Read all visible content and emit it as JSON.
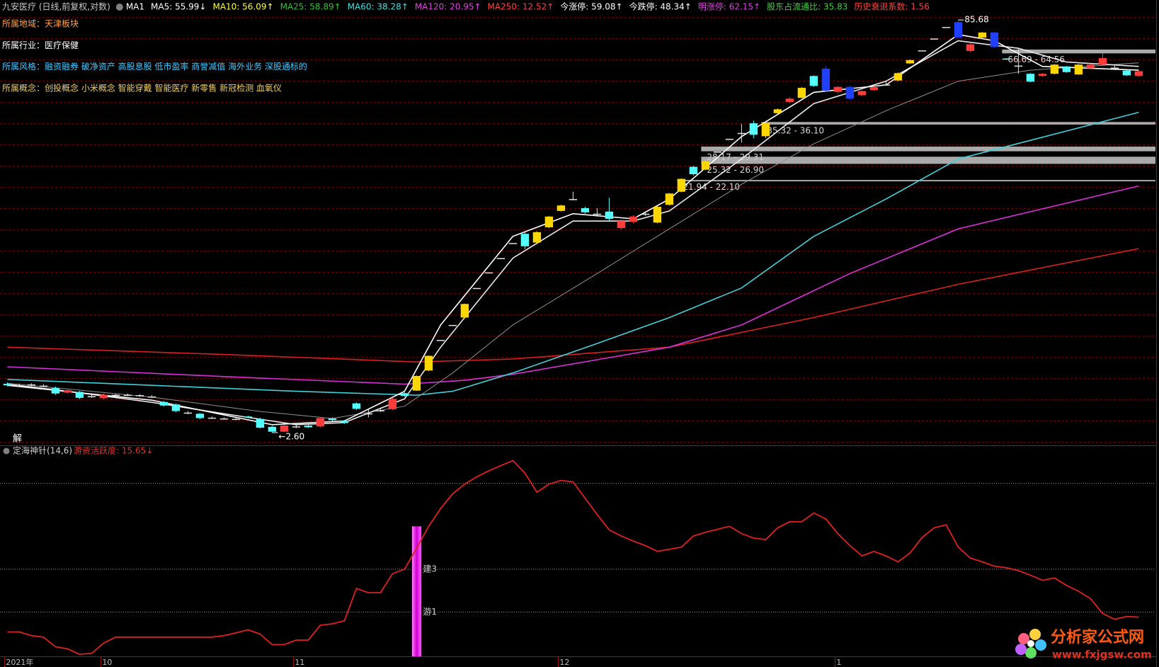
{
  "header": {
    "title": "九安医疗 (日线,前复权,对数)",
    "items": [
      {
        "text": "MA1",
        "color": "#ffffff"
      },
      {
        "text": "MA5: 55.99↓",
        "color": "#ffffff"
      },
      {
        "text": "MA10: 56.09↑",
        "color": "#ffff40"
      },
      {
        "text": "MA25: 58.89↑",
        "color": "#30c030"
      },
      {
        "text": "MA60: 38.28↑",
        "color": "#40e0e0"
      },
      {
        "text": "MA120: 20.95↑",
        "color": "#e040e0"
      },
      {
        "text": "MA250: 12.52↑",
        "color": "#ff4040"
      },
      {
        "text": "今涨停: 59.08↑",
        "color": "#ffffff"
      },
      {
        "text": "今跌停: 48.34↑",
        "color": "#ffffff"
      },
      {
        "text": "明涨停: 62.15↑",
        "color": "#e040e0"
      },
      {
        "text": "股东占流通比: 35.83",
        "color": "#40d040"
      },
      {
        "text": "历史衰退系数: 1.56",
        "color": "#ff4040"
      }
    ]
  },
  "info": [
    {
      "label": "所属地域：",
      "value": "天津板块",
      "color": "#ffa040"
    },
    {
      "label": "所属行业：",
      "value": "医疗保健",
      "color": "#ffffff"
    },
    {
      "label": "所属风格：",
      "value": "融资融券 破净资产 高股息股 低市盈率 商誉减值 海外业务 深股通标的",
      "color": "#40c8ff"
    },
    {
      "label": "所属概念：",
      "value": "创投概念 小米概念 智能穿戴 智能医疗 新零售 新冠检测 血氧仪",
      "color": "#f0d060"
    }
  ],
  "chart_data": [
    {
      "type": "candlestick",
      "log": true,
      "ylim": [
        2.37,
        89.5
      ],
      "palette": {
        "r": "#ff3c3c",
        "c": "#54ffff",
        "y": "#ffd700",
        "b": "#2040ff",
        "w": "#e0e0e0"
      },
      "open": [
        3.93,
        3.88,
        3.9,
        3.87,
        3.79,
        3.65,
        3.67,
        3.54,
        3.48,
        3.57,
        3.58,
        3.57,
        3.53,
        3.37,
        3.3,
        3.08,
        3.05,
        2.95,
        2.93,
        2.92,
        2.98,
        2.92,
        2.73,
        2.62,
        2.73,
        2.76,
        2.74,
        2.93,
        2.87,
        3.33,
        3.06,
        3.12,
        3.17,
        3.63,
        3.71,
        4.4,
        5.7,
        6.47,
        6.89,
        8.85,
        10.1,
        11.4,
        12.95,
        14.0,
        13.0,
        14.8,
        17.0,
        18.7,
        17.4,
        16.5,
        16.9,
        14.7,
        15.5,
        16.5,
        15.4,
        17.9,
        20.0,
        24.7,
        24.1,
        28.1,
        31.3,
        32.9,
        35.7,
        32.0,
        38.9,
        42.8,
        44.3,
        53.3,
        56.7,
        46.6,
        48.6,
        45.3,
        47.3,
        49.4,
        51.3,
        59.3,
        66.2,
        73.2,
        80.7,
        84.1,
        65.9,
        73.8,
        77.0,
        61.8,
        58.0,
        54.3,
        53.4,
        54.3,
        57.8,
        54.0,
        56.9,
        58.7,
        57.1,
        55.8,
        53.4
      ],
      "high": [
        3.98,
        3.93,
        3.95,
        3.92,
        3.84,
        3.76,
        3.7,
        3.58,
        3.62,
        3.61,
        3.62,
        3.6,
        3.57,
        3.4,
        3.33,
        3.12,
        3.07,
        2.98,
        2.96,
        2.95,
        3.0,
        2.95,
        2.75,
        2.78,
        2.78,
        2.79,
        2.96,
        2.96,
        2.89,
        3.36,
        3.16,
        3.18,
        3.5,
        3.66,
        4.22,
        5.0,
        5.7,
        6.47,
        7.75,
        8.85,
        10.1,
        11.4,
        12.95,
        14.2,
        14.3,
        16.3,
        17.9,
        20.0,
        17.6,
        17.4,
        19.0,
        15.8,
        16.4,
        16.8,
        17.7,
        19.8,
        22.4,
        24.9,
        26.0,
        28.1,
        31.3,
        35.5,
        36.5,
        36.5,
        40.5,
        44.5,
        48.5,
        53.6,
        58.0,
        49.0,
        49.0,
        47.2,
        49.0,
        51.0,
        55.0,
        61.3,
        66.2,
        73.2,
        80.7,
        85.68,
        70.2,
        77.5,
        77.5,
        62.0,
        67.0,
        54.6,
        54.6,
        59.0,
        58.0,
        59.0,
        59.2,
        64.5,
        58.5,
        56.0,
        56.0
      ],
      "low": [
        3.85,
        3.83,
        3.85,
        3.82,
        3.58,
        3.62,
        3.45,
        3.49,
        3.45,
        3.54,
        3.54,
        3.52,
        3.48,
        3.24,
        3.09,
        3.04,
        2.91,
        2.92,
        2.9,
        2.89,
        2.94,
        2.69,
        2.6,
        2.61,
        2.7,
        2.7,
        2.72,
        2.87,
        2.8,
        3.15,
        2.96,
        3.1,
        3.15,
        3.52,
        3.7,
        4.38,
        5.7,
        6.47,
        6.85,
        8.85,
        10.1,
        11.4,
        12.95,
        12.3,
        12.9,
        14.7,
        16.9,
        18.6,
        16.6,
        16.2,
        15.6,
        14.5,
        15.3,
        16.3,
        15.3,
        17.8,
        19.9,
        22.9,
        24.0,
        28.1,
        31.3,
        30.3,
        31.5,
        31.5,
        38.7,
        42.4,
        44.0,
        48.6,
        46.5,
        46.0,
        43.6,
        45.0,
        47.0,
        49.0,
        51.0,
        59.0,
        66.2,
        73.2,
        80.7,
        73.5,
        65.5,
        73.5,
        67.8,
        61.0,
        54.3,
        50.5,
        53.0,
        54.0,
        54.8,
        53.8,
        56.5,
        58.4,
        56.0,
        53.3,
        53.0
      ],
      "close": [
        3.88,
        3.87,
        3.91,
        3.86,
        3.62,
        3.72,
        3.49,
        3.52,
        3.58,
        3.58,
        3.57,
        3.55,
        3.5,
        3.27,
        3.12,
        3.07,
        2.94,
        2.94,
        2.92,
        2.91,
        2.96,
        2.71,
        2.62,
        2.76,
        2.74,
        2.72,
        2.94,
        2.89,
        2.82,
        3.18,
        3.06,
        3.14,
        3.46,
        3.55,
        4.2,
        4.98,
        5.7,
        6.47,
        7.73,
        8.85,
        10.1,
        11.4,
        12.95,
        12.6,
        14.2,
        16.2,
        17.8,
        18.8,
        16.8,
        16.6,
        15.9,
        15.6,
        16.2,
        16.6,
        17.6,
        19.7,
        22.3,
        23.2,
        25.9,
        28.1,
        31.3,
        32.9,
        32.4,
        35.7,
        40.2,
        44.0,
        48.2,
        49.0,
        47.0,
        48.6,
        44.0,
        46.9,
        48.5,
        49.6,
        54.6,
        61.0,
        66.2,
        73.2,
        80.7,
        73.8,
        69.7,
        77.0,
        68.1,
        61.3,
        58.2,
        50.8,
        54.3,
        58.7,
        55.1,
        58.7,
        58.7,
        62.0,
        57.2,
        53.6,
        55.5
      ],
      "colors": [
        "c",
        "w",
        "w",
        "w",
        "c",
        "r",
        "c",
        "w",
        "r",
        "w",
        "w",
        "w",
        "w",
        "c",
        "c",
        "w",
        "c",
        "w",
        "w",
        "w",
        "c",
        "c",
        "c",
        "r",
        "w",
        "c",
        "r",
        "c",
        "c",
        "c",
        "w",
        "w",
        "r",
        "c",
        "y",
        "y",
        "w",
        "w",
        "y",
        "w",
        "w",
        "w",
        "w",
        "c",
        "y",
        "y",
        "y",
        "w",
        "c",
        "w",
        "c",
        "r",
        "r",
        "w",
        "y",
        "y",
        "y",
        "c",
        "y",
        "w",
        "w",
        "w",
        "c",
        "y",
        "y",
        "r",
        "y",
        "c",
        "b",
        "r",
        "b",
        "r",
        "r",
        "w",
        "y",
        "y",
        "w",
        "w",
        "w",
        "b",
        "r",
        "y",
        "b",
        "c",
        "w",
        "c",
        "r",
        "y",
        "c",
        "y",
        "r",
        "r",
        "w",
        "c",
        "r"
      ],
      "ma": [
        {
          "name": "MA250",
          "color": "#d82020",
          "x": [
            0,
            18,
            34,
            42,
            55,
            67,
            79,
            94
          ],
          "values": [
            5.36,
            5.04,
            4.73,
            4.85,
            5.36,
            6.89,
            9.13,
            12.35
          ]
        },
        {
          "name": "MA120",
          "color": "#d830d8",
          "x": [
            0,
            18,
            33,
            38,
            42,
            49,
            55,
            61,
            70,
            79,
            94
          ],
          "values": [
            4.54,
            4.18,
            3.92,
            4.05,
            4.26,
            4.82,
            5.36,
            6.47,
            10.0,
            14.6,
            21.0
          ]
        },
        {
          "name": "MA60",
          "color": "#40d0d8",
          "x": [
            0,
            12,
            24,
            34,
            37,
            42,
            49,
            55,
            61,
            67,
            73,
            79,
            85,
            94
          ],
          "values": [
            4.08,
            3.88,
            3.69,
            3.57,
            3.69,
            4.31,
            5.53,
            6.89,
            8.85,
            13.7,
            18.8,
            26.4,
            30.9,
            39.2
          ]
        },
        {
          "name": "MA25",
          "color": "#909090",
          "x": [
            0,
            12,
            21,
            27,
            33,
            37,
            42,
            49,
            55,
            61,
            67,
            73,
            79,
            85,
            94
          ],
          "values": [
            3.95,
            3.51,
            3.11,
            2.93,
            3.25,
            4.31,
            6.47,
            10.0,
            14.6,
            21.3,
            30.0,
            39.7,
            51.0,
            56.0,
            59.6
          ]
        },
        {
          "name": "MA10",
          "color": "#e8e8e8",
          "x": [
            0,
            5,
            12,
            18,
            24,
            28,
            33,
            36,
            42,
            47,
            52,
            55,
            61,
            67,
            73,
            79,
            84,
            88,
            94
          ],
          "values": [
            3.92,
            3.69,
            3.36,
            3.05,
            2.78,
            2.83,
            3.46,
            5.36,
            11.4,
            15.6,
            15.6,
            17.0,
            26.4,
            42.2,
            51.0,
            71.8,
            67.4,
            60.0,
            57.8
          ]
        },
        {
          "name": "MA5",
          "color": "#ffffff",
          "x": [
            0,
            12,
            22,
            28,
            33,
            36,
            42,
            47,
            52,
            55,
            61,
            67,
            73,
            79,
            82,
            86,
            94
          ],
          "values": [
            3.88,
            3.42,
            2.78,
            2.87,
            3.69,
            6.47,
            13.7,
            16.6,
            15.9,
            18.8,
            31.9,
            46.4,
            49.4,
            75.7,
            71.8,
            57.8,
            56.0
          ]
        }
      ],
      "gap_color": "#c8c8c8",
      "gaps": [
        {
          "label": "66.69 - 64.56",
          "low": 64.56,
          "high": 66.69,
          "start": 83
        },
        {
          "label": "35.32 - 36.10",
          "low": 35.32,
          "high": 36.1,
          "start": 63
        },
        {
          "label": "28.17 - 29.31",
          "low": 28.17,
          "high": 29.31,
          "start": 58
        },
        {
          "label": "25.32 - 26.90",
          "low": 25.32,
          "high": 26.9,
          "start": 58
        },
        {
          "label": "21.94 - 22.10",
          "low": 21.94,
          "high": 22.1,
          "start": 56
        }
      ],
      "annotations": [
        {
          "text": "85.68",
          "index": 79,
          "value": 85.68
        },
        {
          "text": "←2.60",
          "index": 22,
          "value": 2.6
        }
      ],
      "corner_text": "解"
    },
    {
      "type": "line",
      "title": "定海神针(14,6)",
      "subtitle": "游资活跃度: 15.65↓",
      "color": "#e02020",
      "ylim": [
        -1.07,
        8.76
      ],
      "values": [
        0.07,
        0.07,
        -0.1,
        -0.17,
        -0.62,
        -0.72,
        -0.97,
        -0.93,
        -0.45,
        -0.17,
        -0.17,
        -0.17,
        -0.17,
        -0.17,
        -0.17,
        -0.17,
        -0.17,
        -0.17,
        -0.1,
        0.03,
        0.17,
        -0.03,
        -0.52,
        -0.52,
        -0.31,
        -0.31,
        0.38,
        0.45,
        0.59,
        2.1,
        1.9,
        1.9,
        2.79,
        3.0,
        3.97,
        5.0,
        5.83,
        6.52,
        6.97,
        7.31,
        7.59,
        7.83,
        8.07,
        7.48,
        6.59,
        6.97,
        7.14,
        7.07,
        6.31,
        5.55,
        4.83,
        4.55,
        4.31,
        4.1,
        3.83,
        3.93,
        4.03,
        4.55,
        4.72,
        4.86,
        5.0,
        4.66,
        4.45,
        4.38,
        4.93,
        5.21,
        5.21,
        5.62,
        5.34,
        4.66,
        4.1,
        3.62,
        3.83,
        3.62,
        3.34,
        3.76,
        4.48,
        4.93,
        5.07,
        4.03,
        3.52,
        3.34,
        3.14,
        3.07,
        2.93,
        2.72,
        2.48,
        2.59,
        2.24,
        1.97,
        1.62,
        0.93,
        0.66,
        0.79,
        0.76
      ],
      "levels": [
        {
          "value": 7
        },
        {
          "value": 3,
          "label": "建3"
        },
        {
          "value": 1,
          "label": "游1"
        }
      ],
      "bar": {
        "index": 34,
        "value": 5.0,
        "color": "#e020e0"
      },
      "xticks": [
        {
          "value": 0,
          "label": "2021年"
        },
        {
          "value": 8,
          "label": "10"
        },
        {
          "value": 24,
          "label": "11"
        },
        {
          "value": 46,
          "label": "12"
        },
        {
          "value": 69,
          "label": "1"
        }
      ]
    }
  ],
  "watermark": {
    "name": "分析家公式网",
    "url": "www.fxjgsw.com"
  }
}
